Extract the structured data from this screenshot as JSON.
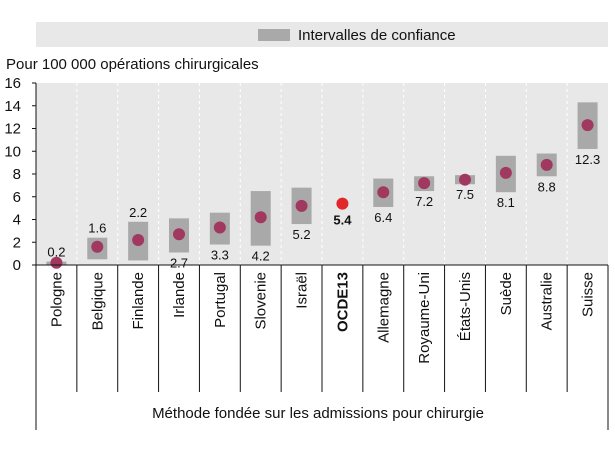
{
  "chart_data": {
    "type": "dot-with-intervals",
    "legend": {
      "label": "Intervalles de confiance",
      "placement": "top"
    },
    "ylabel": "Pour 100 000 opérations chirurgicales",
    "ylim": [
      0,
      16
    ],
    "yticks": [
      0,
      2,
      4,
      6,
      8,
      10,
      12,
      14,
      16
    ],
    "xlabel": "Méthode fondée sur les admissions pour chirurgie",
    "grid": "vertical dashed",
    "categories": [
      "Pologne",
      "Belgique",
      "Finlande",
      "Irlande",
      "Portugal",
      "Slovenie",
      "Israël",
      "OCDE13",
      "Allemagne",
      "Royaume-Uni",
      "États-Unis",
      "Suède",
      "Australie",
      "Suisse"
    ],
    "values": [
      0.2,
      1.6,
      2.2,
      2.7,
      3.3,
      4.2,
      5.2,
      5.4,
      6.4,
      7.2,
      7.5,
      8.1,
      8.8,
      12.3
    ],
    "value_labels": [
      "0.2",
      "1.6",
      "2.2",
      "2.7",
      "3.3",
      "4.2",
      "5.2",
      "5.4",
      "6.4",
      "7.2",
      "7.5",
      "8.1",
      "8.8",
      "12.3"
    ],
    "label_positions": [
      "above",
      "above",
      "above",
      "below",
      "below",
      "below",
      "below",
      "below",
      "below",
      "below",
      "below",
      "below",
      "below",
      "below"
    ],
    "ci_low": [
      0.0,
      0.5,
      0.4,
      1.1,
      1.8,
      1.7,
      3.6,
      null,
      5.1,
      6.5,
      7.1,
      6.4,
      7.8,
      10.2
    ],
    "ci_high": [
      0.3,
      2.4,
      3.8,
      4.1,
      4.6,
      6.5,
      6.8,
      null,
      7.6,
      7.8,
      7.9,
      9.6,
      9.8,
      14.3
    ],
    "highlight_index": 7,
    "colors": {
      "point": "#a0385f",
      "highlight_point": "#e0272a",
      "interval": "#a9a9a9",
      "plot_background": "#e8e8e8",
      "legend_background": "#e8e8e8"
    }
  }
}
